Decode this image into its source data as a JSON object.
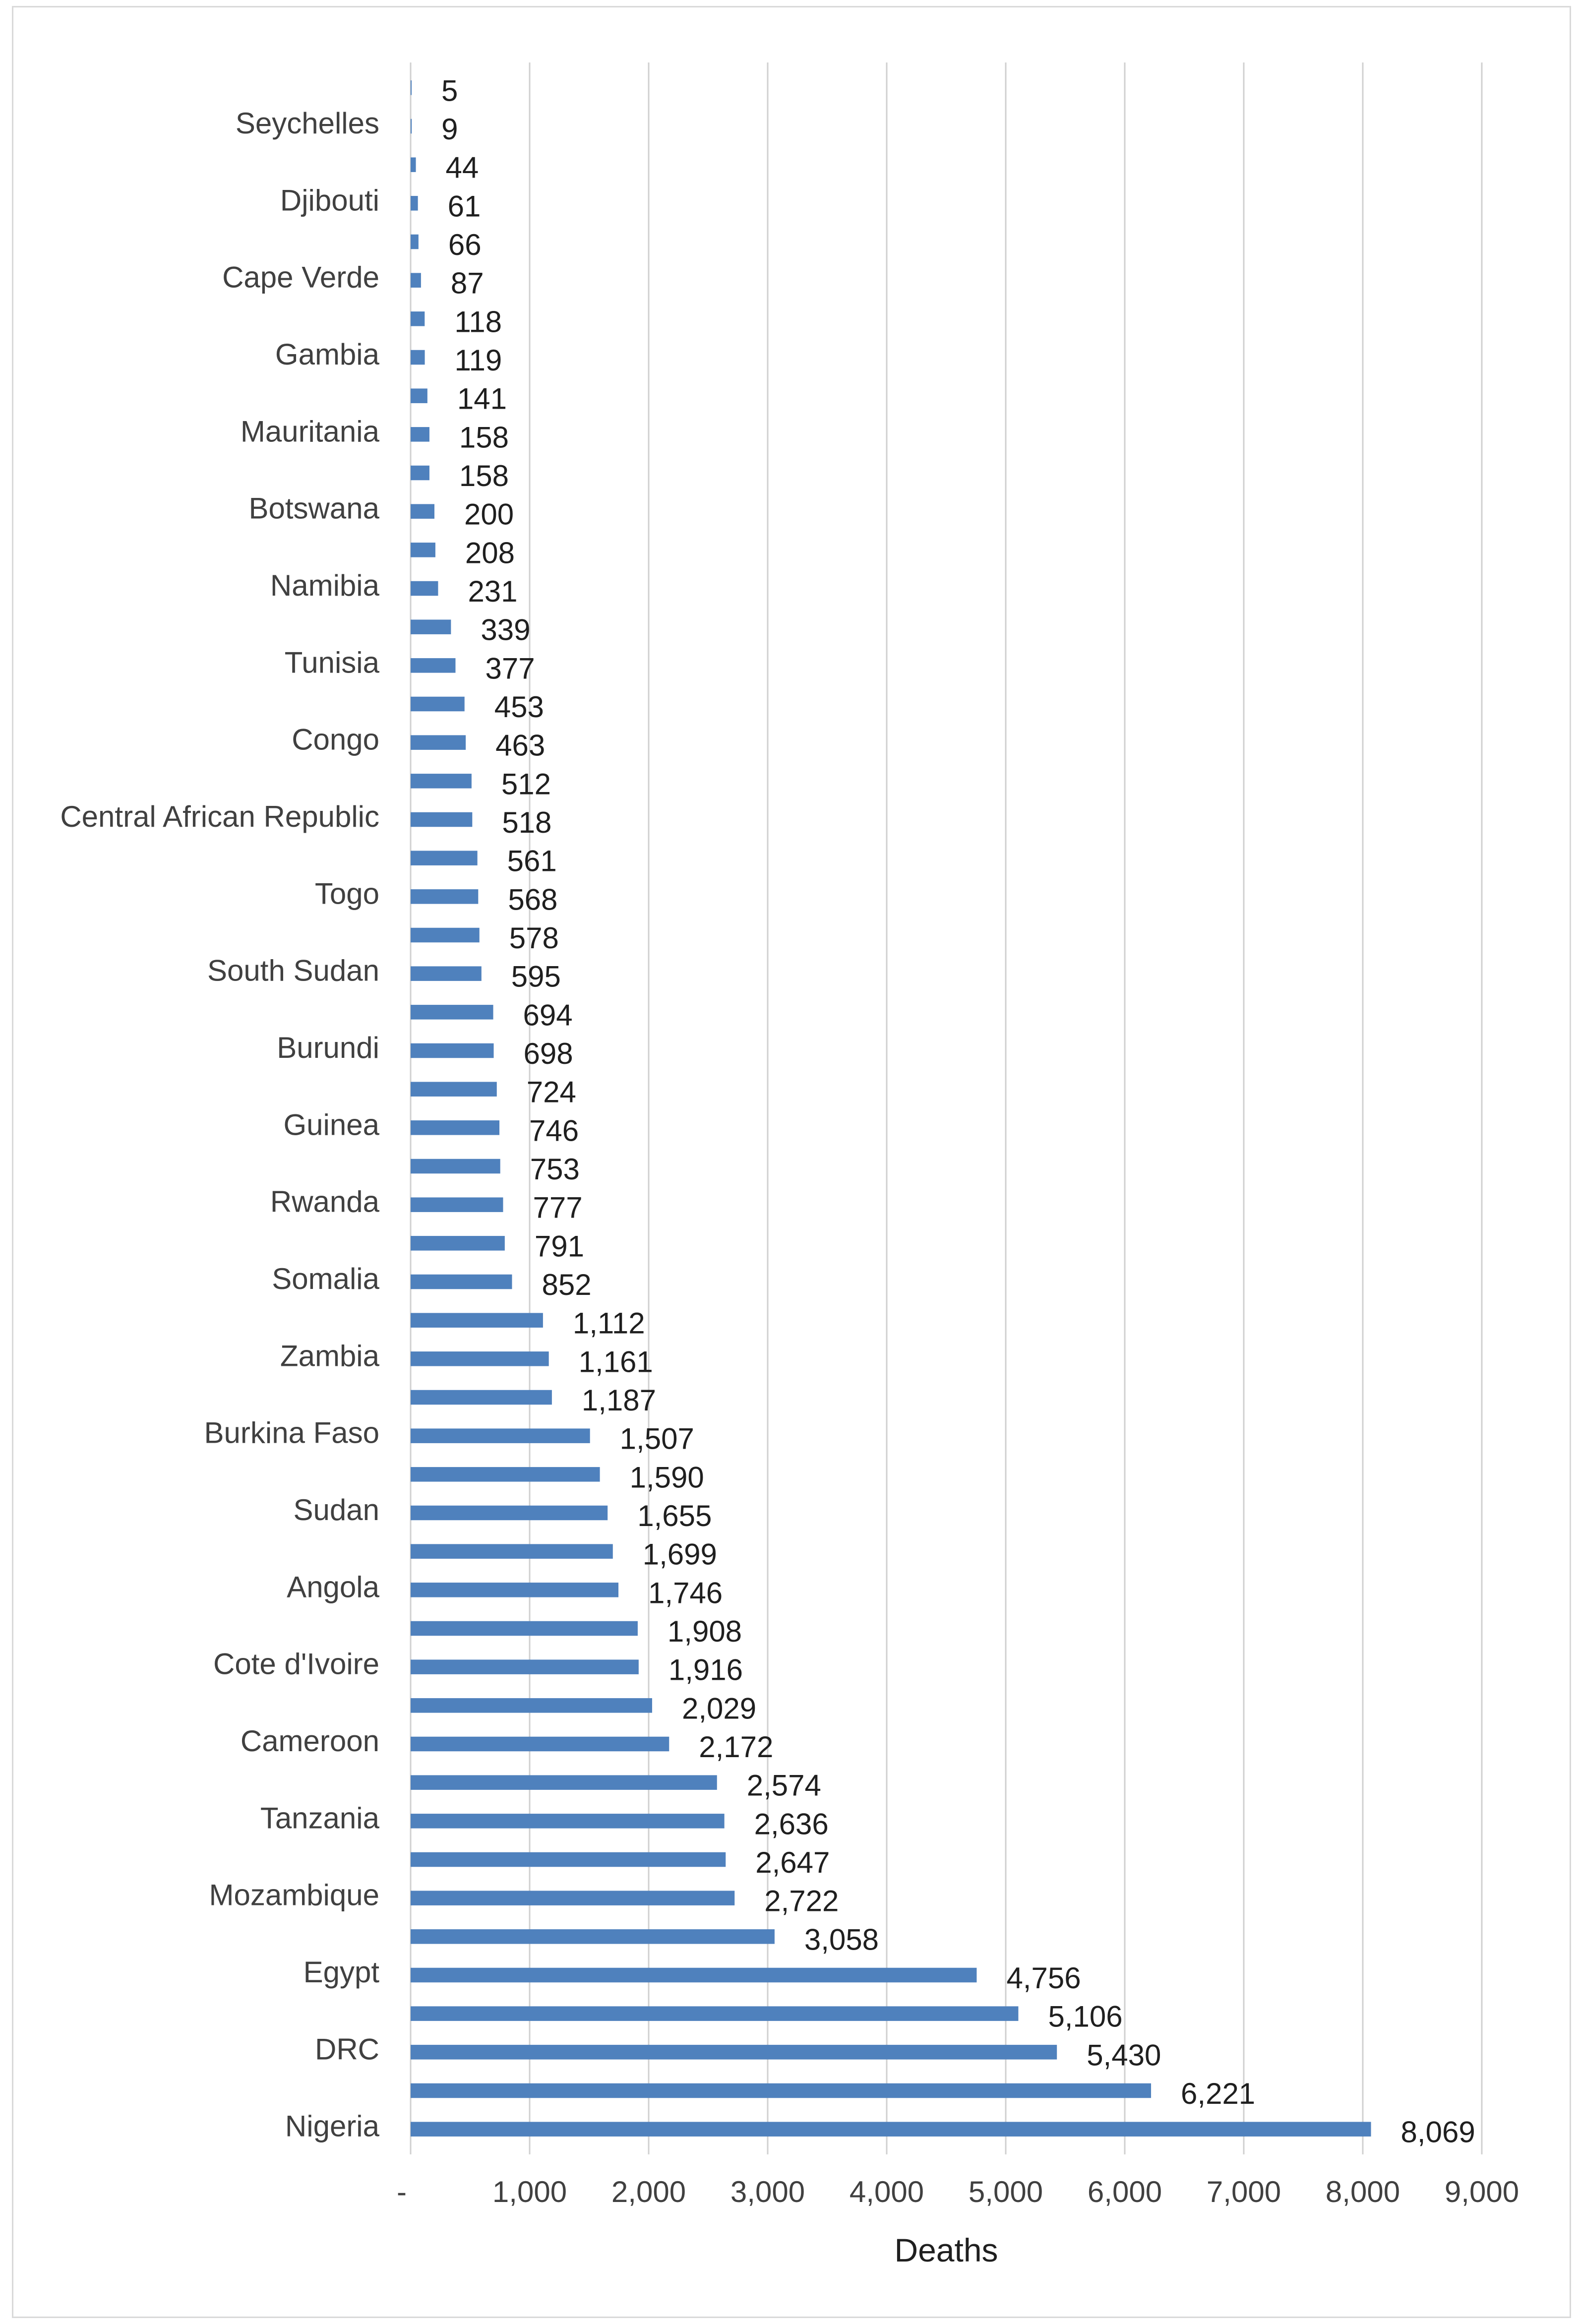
{
  "chart_data": {
    "type": "bar",
    "orientation": "horizontal",
    "title": "",
    "xlabel": "Deaths",
    "ylabel": "",
    "xlim": [
      0,
      9000
    ],
    "grid": true,
    "legend": "none",
    "bar_color": "#4f81bd",
    "x_tick_values": [
      0,
      1000,
      2000,
      3000,
      4000,
      5000,
      6000,
      7000,
      8000,
      9000
    ],
    "x_tick_labels": [
      "-",
      "1,000",
      "2,000",
      "3,000",
      "4,000",
      "5,000",
      "6,000",
      "7,000",
      "8,000",
      "9,000"
    ],
    "categories": [
      "",
      "Seychelles",
      "",
      "Djibouti",
      "",
      "Cape Verde",
      "",
      "Gambia",
      "",
      "Mauritania",
      "",
      "Botswana",
      "",
      "Namibia",
      "",
      "Tunisia",
      "",
      "Congo",
      "",
      "Central African Republic",
      "",
      "Togo",
      "",
      "South Sudan",
      "",
      "Burundi",
      "",
      "Guinea",
      "",
      "Rwanda",
      "",
      "Somalia",
      "",
      "Zambia",
      "",
      "Burkina Faso",
      "",
      "Sudan",
      "",
      "Angola",
      "",
      "Cote d'Ivoire",
      "",
      "Cameroon",
      "",
      "Tanzania",
      "",
      "Mozambique",
      "",
      "Egypt",
      "",
      "DRC",
      "",
      "Nigeria"
    ],
    "values": [
      5,
      9,
      44,
      61,
      66,
      87,
      118,
      119,
      141,
      158,
      158,
      200,
      208,
      231,
      339,
      377,
      453,
      463,
      512,
      518,
      561,
      568,
      578,
      595,
      694,
      698,
      724,
      746,
      753,
      777,
      791,
      852,
      1112,
      1161,
      1187,
      1507,
      1590,
      1655,
      1699,
      1746,
      1908,
      1916,
      2029,
      2172,
      2574,
      2636,
      2647,
      2722,
      3058,
      4756,
      5106,
      5430,
      6221,
      8069
    ],
    "value_labels": [
      "5",
      "9",
      "44",
      "61",
      "66",
      "87",
      "118",
      "119",
      "141",
      "158",
      "158",
      "200",
      "208",
      "231",
      "339",
      "377",
      "453",
      "463",
      "512",
      "518",
      "561",
      "568",
      "578",
      "595",
      "694",
      "698",
      "724",
      "746",
      "753",
      "777",
      "791",
      "852",
      "1,112",
      "1,161",
      "1,187",
      "1,507",
      "1,590",
      "1,655",
      "1,699",
      "1,746",
      "1,908",
      "1,916",
      "2,029",
      "2,172",
      "2,574",
      "2,636",
      "2,647",
      "2,722",
      "3,058",
      "4,756",
      "5,106",
      "5,430",
      "6,221",
      "8,069"
    ]
  }
}
